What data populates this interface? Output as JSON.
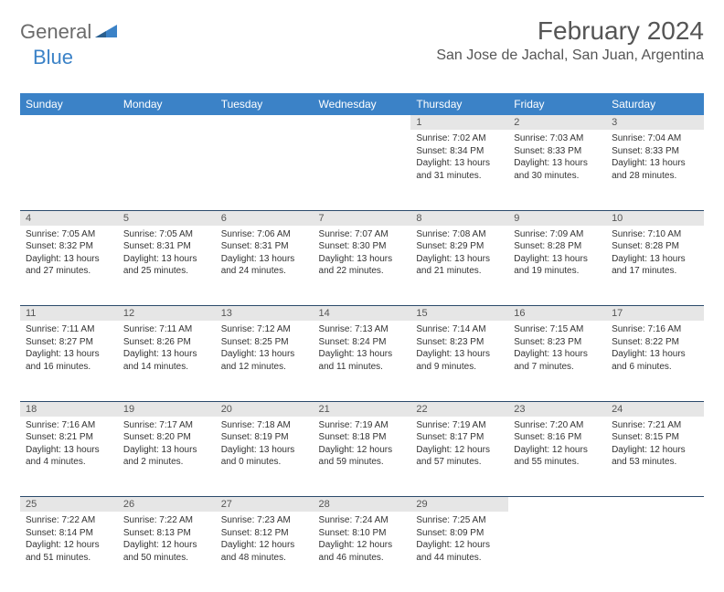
{
  "brand": {
    "name1": "General",
    "name2": "Blue"
  },
  "title": "February 2024",
  "location": "San Jose de Jachal, San Juan, Argentina",
  "colors": {
    "header_bg": "#3b82c7",
    "header_text": "#ffffff",
    "daynum_bg": "#e6e6e6",
    "rule": "#2b4a6b",
    "brand_gray": "#6b6b6b",
    "brand_blue": "#3b82c7"
  },
  "columns": [
    "Sunday",
    "Monday",
    "Tuesday",
    "Wednesday",
    "Thursday",
    "Friday",
    "Saturday"
  ],
  "weeks": [
    {
      "nums": [
        "",
        "",
        "",
        "",
        "1",
        "2",
        "3"
      ],
      "cells": [
        null,
        null,
        null,
        null,
        {
          "sunrise": "7:02 AM",
          "sunset": "8:34 PM",
          "daylight": "13 hours and 31 minutes."
        },
        {
          "sunrise": "7:03 AM",
          "sunset": "8:33 PM",
          "daylight": "13 hours and 30 minutes."
        },
        {
          "sunrise": "7:04 AM",
          "sunset": "8:33 PM",
          "daylight": "13 hours and 28 minutes."
        }
      ]
    },
    {
      "nums": [
        "4",
        "5",
        "6",
        "7",
        "8",
        "9",
        "10"
      ],
      "cells": [
        {
          "sunrise": "7:05 AM",
          "sunset": "8:32 PM",
          "daylight": "13 hours and 27 minutes."
        },
        {
          "sunrise": "7:05 AM",
          "sunset": "8:31 PM",
          "daylight": "13 hours and 25 minutes."
        },
        {
          "sunrise": "7:06 AM",
          "sunset": "8:31 PM",
          "daylight": "13 hours and 24 minutes."
        },
        {
          "sunrise": "7:07 AM",
          "sunset": "8:30 PM",
          "daylight": "13 hours and 22 minutes."
        },
        {
          "sunrise": "7:08 AM",
          "sunset": "8:29 PM",
          "daylight": "13 hours and 21 minutes."
        },
        {
          "sunrise": "7:09 AM",
          "sunset": "8:28 PM",
          "daylight": "13 hours and 19 minutes."
        },
        {
          "sunrise": "7:10 AM",
          "sunset": "8:28 PM",
          "daylight": "13 hours and 17 minutes."
        }
      ]
    },
    {
      "nums": [
        "11",
        "12",
        "13",
        "14",
        "15",
        "16",
        "17"
      ],
      "cells": [
        {
          "sunrise": "7:11 AM",
          "sunset": "8:27 PM",
          "daylight": "13 hours and 16 minutes."
        },
        {
          "sunrise": "7:11 AM",
          "sunset": "8:26 PM",
          "daylight": "13 hours and 14 minutes."
        },
        {
          "sunrise": "7:12 AM",
          "sunset": "8:25 PM",
          "daylight": "13 hours and 12 minutes."
        },
        {
          "sunrise": "7:13 AM",
          "sunset": "8:24 PM",
          "daylight": "13 hours and 11 minutes."
        },
        {
          "sunrise": "7:14 AM",
          "sunset": "8:23 PM",
          "daylight": "13 hours and 9 minutes."
        },
        {
          "sunrise": "7:15 AM",
          "sunset": "8:23 PM",
          "daylight": "13 hours and 7 minutes."
        },
        {
          "sunrise": "7:16 AM",
          "sunset": "8:22 PM",
          "daylight": "13 hours and 6 minutes."
        }
      ]
    },
    {
      "nums": [
        "18",
        "19",
        "20",
        "21",
        "22",
        "23",
        "24"
      ],
      "cells": [
        {
          "sunrise": "7:16 AM",
          "sunset": "8:21 PM",
          "daylight": "13 hours and 4 minutes."
        },
        {
          "sunrise": "7:17 AM",
          "sunset": "8:20 PM",
          "daylight": "13 hours and 2 minutes."
        },
        {
          "sunrise": "7:18 AM",
          "sunset": "8:19 PM",
          "daylight": "13 hours and 0 minutes."
        },
        {
          "sunrise": "7:19 AM",
          "sunset": "8:18 PM",
          "daylight": "12 hours and 59 minutes."
        },
        {
          "sunrise": "7:19 AM",
          "sunset": "8:17 PM",
          "daylight": "12 hours and 57 minutes."
        },
        {
          "sunrise": "7:20 AM",
          "sunset": "8:16 PM",
          "daylight": "12 hours and 55 minutes."
        },
        {
          "sunrise": "7:21 AM",
          "sunset": "8:15 PM",
          "daylight": "12 hours and 53 minutes."
        }
      ]
    },
    {
      "nums": [
        "25",
        "26",
        "27",
        "28",
        "29",
        "",
        ""
      ],
      "cells": [
        {
          "sunrise": "7:22 AM",
          "sunset": "8:14 PM",
          "daylight": "12 hours and 51 minutes."
        },
        {
          "sunrise": "7:22 AM",
          "sunset": "8:13 PM",
          "daylight": "12 hours and 50 minutes."
        },
        {
          "sunrise": "7:23 AM",
          "sunset": "8:12 PM",
          "daylight": "12 hours and 48 minutes."
        },
        {
          "sunrise": "7:24 AM",
          "sunset": "8:10 PM",
          "daylight": "12 hours and 46 minutes."
        },
        {
          "sunrise": "7:25 AM",
          "sunset": "8:09 PM",
          "daylight": "12 hours and 44 minutes."
        },
        null,
        null
      ]
    }
  ],
  "labels": {
    "sunrise": "Sunrise: ",
    "sunset": "Sunset: ",
    "daylight": "Daylight: "
  }
}
